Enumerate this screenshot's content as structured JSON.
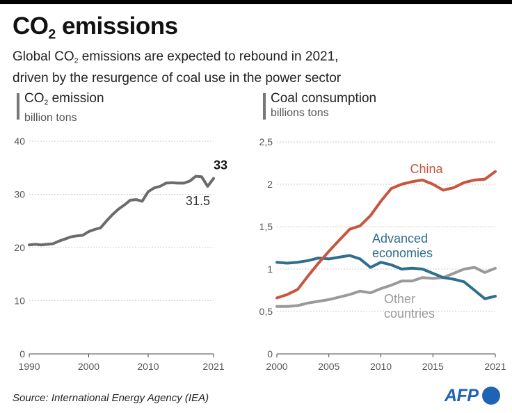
{
  "header": {
    "title_pre": "CO",
    "title_sub": "2",
    "title_post": " emissions",
    "subtitle_line1_pre": "Global CO",
    "subtitle_line1_sub": "2",
    "subtitle_line1_post": " emissions are expected to rebound in 2021,",
    "subtitle_line2": "driven by the resurgence of coal use in the power sector"
  },
  "left_panel": {
    "label_pre": "CO",
    "label_sub": "2",
    "label_post": " emission",
    "unit": "billion tons"
  },
  "right_panel": {
    "label": "Coal consumption",
    "unit": "billions tons"
  },
  "footer": {
    "source": "Source: International Energy Agency (IEA)",
    "logo_text": "AFP"
  },
  "colors": {
    "co2_line": "#6b6b6b",
    "china": "#c8553d",
    "advanced": "#2e6e8e",
    "other": "#9a9a9a",
    "grid": "#cccccc",
    "afp": "#1e63b4"
  },
  "chart_data": [
    {
      "type": "line",
      "title": "CO2 emission",
      "ylabel": "billion tons",
      "xlim": [
        1990,
        2021
      ],
      "ylim": [
        0,
        40
      ],
      "x_ticks": [
        1990,
        2000,
        2010,
        2021
      ],
      "y_ticks": [
        0,
        10,
        20,
        30,
        40
      ],
      "x_tick_labels": [
        "1990",
        "2000",
        "2010",
        "2021"
      ],
      "y_tick_labels": [
        "0",
        "10",
        "20",
        "30",
        "40"
      ],
      "grid": true,
      "series": [
        {
          "key": "co2",
          "x": [
            1990,
            1991,
            1992,
            1993,
            1994,
            1995,
            1996,
            1997,
            1998,
            1999,
            2000,
            2001,
            2002,
            2003,
            2004,
            2005,
            2006,
            2007,
            2008,
            2009,
            2010,
            2011,
            2012,
            2013,
            2014,
            2015,
            2016,
            2017,
            2018,
            2019,
            2020,
            2021
          ],
          "values": [
            20.5,
            20.6,
            20.5,
            20.6,
            20.7,
            21.2,
            21.6,
            22.0,
            22.2,
            22.3,
            23.0,
            23.4,
            23.7,
            25.0,
            26.2,
            27.2,
            28.0,
            28.9,
            29.0,
            28.7,
            30.5,
            31.2,
            31.5,
            32.1,
            32.2,
            32.1,
            32.1,
            32.5,
            33.4,
            33.3,
            31.5,
            33.0
          ]
        }
      ],
      "annotations": [
        {
          "text": "33",
          "x": 2021,
          "y": 33.0,
          "bold": true
        },
        {
          "text": "31.5",
          "x": 2020,
          "y": 31.5,
          "bold": false
        }
      ]
    },
    {
      "type": "line",
      "title": "Coal consumption",
      "ylabel": "billions tons",
      "xlim": [
        2000,
        2021
      ],
      "ylim": [
        0,
        2.5
      ],
      "x_ticks": [
        2000,
        2005,
        2010,
        2015,
        2021
      ],
      "y_ticks": [
        0,
        0.5,
        1,
        1.5,
        2,
        2.5
      ],
      "x_tick_labels": [
        "2000",
        "2005",
        "2010",
        "2015",
        "2021"
      ],
      "y_tick_labels": [
        "0",
        "0,5",
        "1",
        "1,5",
        "2",
        "2,5"
      ],
      "grid": true,
      "x": [
        2000,
        2001,
        2002,
        2003,
        2004,
        2005,
        2006,
        2007,
        2008,
        2009,
        2010,
        2011,
        2012,
        2013,
        2014,
        2015,
        2016,
        2017,
        2018,
        2019,
        2020,
        2021
      ],
      "series": [
        {
          "key": "china",
          "name": "China",
          "values": [
            0.66,
            0.7,
            0.76,
            0.92,
            1.07,
            1.21,
            1.34,
            1.47,
            1.51,
            1.63,
            1.8,
            1.95,
            2.0,
            2.03,
            2.05,
            2.0,
            1.93,
            1.96,
            2.02,
            2.05,
            2.06,
            2.15
          ]
        },
        {
          "key": "advanced",
          "name": "Advanced economies",
          "values": [
            1.08,
            1.07,
            1.08,
            1.1,
            1.13,
            1.12,
            1.14,
            1.16,
            1.12,
            1.02,
            1.08,
            1.05,
            1.0,
            1.01,
            1.0,
            0.95,
            0.9,
            0.88,
            0.85,
            0.75,
            0.65,
            0.68
          ]
        },
        {
          "key": "other",
          "name": "Other countries",
          "values": [
            0.56,
            0.56,
            0.57,
            0.6,
            0.62,
            0.64,
            0.67,
            0.7,
            0.74,
            0.72,
            0.77,
            0.81,
            0.86,
            0.86,
            0.9,
            0.89,
            0.9,
            0.95,
            1.0,
            1.02,
            0.96,
            1.01
          ]
        }
      ],
      "series_labels": [
        {
          "series": "china",
          "lines": [
            "China"
          ]
        },
        {
          "series": "advanced",
          "lines": [
            "Advanced",
            "economies"
          ]
        },
        {
          "series": "other",
          "lines": [
            "Other",
            "countries"
          ]
        }
      ]
    }
  ]
}
